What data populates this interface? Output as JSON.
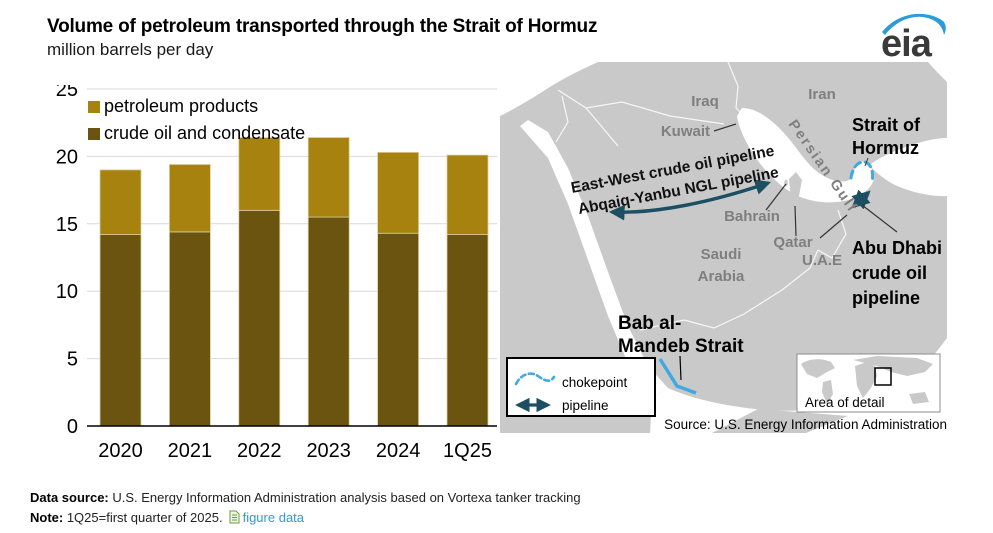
{
  "header": {
    "title": "Volume of petroleum transported through the Strait of Hormuz",
    "subtitle": "million barrels per day"
  },
  "logo": {
    "text": "eia",
    "swoosh_color": "#2b9cd8"
  },
  "chart_data": {
    "type": "bar",
    "stacked": true,
    "categories": [
      "2020",
      "2021",
      "2022",
      "2023",
      "2024",
      "1Q25"
    ],
    "series": [
      {
        "name": "crude oil and condensate",
        "color": "#6a5410",
        "values": [
          14.2,
          14.4,
          16.0,
          15.5,
          14.3,
          14.2
        ]
      },
      {
        "name": "petroleum products",
        "color": "#a8820f",
        "values": [
          4.8,
          5.0,
          5.4,
          5.9,
          6.0,
          5.9
        ]
      }
    ],
    "totals": [
      19.0,
      19.4,
      21.4,
      21.4,
      20.3,
      20.1
    ],
    "title": "Volume of petroleum transported through the Strait of Hormuz",
    "ylabel": "million barrels per day",
    "xlabel": "",
    "ylim": [
      0,
      25
    ],
    "yticks": [
      0,
      5,
      10,
      15,
      20,
      25
    ],
    "grid": true,
    "legend_position": "top-left"
  },
  "map": {
    "labels": {
      "iraq": "Iraq",
      "iran": "Iran",
      "kuwait": "Kuwait",
      "persian_gulf": "Persian Gulf",
      "bahrain": "Bahrain",
      "qatar": "Qatar",
      "uae": "U.A.E",
      "saudi_arabia": [
        "Saudi",
        "Arabia"
      ],
      "strait_of_hormuz": [
        "Strait of",
        "Hormuz"
      ],
      "abu_dhabi_pipeline": [
        "Abu Dhabi",
        "crude oil",
        "pipeline"
      ],
      "bab_al_mandeb": [
        "Bab al-",
        "Mandeb Strait"
      ],
      "east_west_pipeline": [
        "East-West crude oil pipeline",
        "Abqaiq-Yanbu NGL pipeline"
      ]
    },
    "legend": {
      "chokepoint": "chokepoint",
      "pipeline": "pipeline"
    },
    "inset_label": "Area of detail",
    "source": "Source: U.S. Energy Information Administration",
    "colors": {
      "land": "#c9c9c9",
      "water": "#ffffff",
      "chokepoint": "#3fa9e0",
      "pipeline": "#1d4f63",
      "country_label": "#7f7f7f"
    }
  },
  "footer": {
    "data_source_label": "Data source:",
    "data_source_text": " U.S. Energy Information Administration analysis based on Vortexa tanker tracking",
    "note_label": "Note:",
    "note_text": " 1Q25=first quarter of 2025.",
    "figure_data_icon": "document-icon",
    "figure_data_link": "figure data"
  }
}
